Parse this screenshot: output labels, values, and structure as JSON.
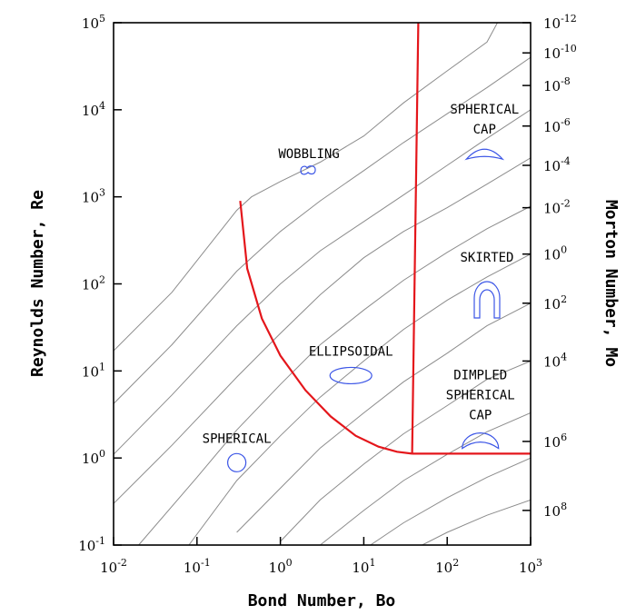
{
  "chart_data": {
    "type": "line",
    "xlabel": "Bond Number, Bo",
    "ylabel": "Reynolds Number, Re",
    "y2label": "Morton Number, Mo",
    "x_scale": "log",
    "y_scale": "log",
    "xlim": [
      0.01,
      1000
    ],
    "ylim": [
      0.1,
      100000
    ],
    "x_ticks": [
      {
        "base": "10",
        "exp": "-2",
        "value": 0.01
      },
      {
        "base": "10",
        "exp": "-1",
        "value": 0.1
      },
      {
        "base": "10",
        "exp": "0",
        "value": 1
      },
      {
        "base": "10",
        "exp": "1",
        "value": 10
      },
      {
        "base": "10",
        "exp": "2",
        "value": 100
      },
      {
        "base": "10",
        "exp": "3",
        "value": 1000
      }
    ],
    "y_ticks": [
      {
        "base": "10",
        "exp": "-1",
        "value": 0.1
      },
      {
        "base": "10",
        "exp": "0",
        "value": 1
      },
      {
        "base": "10",
        "exp": "1",
        "value": 10
      },
      {
        "base": "10",
        "exp": "2",
        "value": 100
      },
      {
        "base": "10",
        "exp": "3",
        "value": 1000
      },
      {
        "base": "10",
        "exp": "4",
        "value": 10000
      },
      {
        "base": "10",
        "exp": "5",
        "value": 100000
      }
    ],
    "mo_labels": [
      {
        "base": "10",
        "exp": "-12",
        "re": 100000
      },
      {
        "base": "10",
        "exp": "-10",
        "re": 45000
      },
      {
        "base": "10",
        "exp": "-8",
        "re": 19000
      },
      {
        "base": "10",
        "exp": "-6",
        "re": 6500
      },
      {
        "base": "10",
        "exp": "-4",
        "re": 2300
      },
      {
        "base": "10",
        "exp": "-2",
        "re": 750
      },
      {
        "base": "10",
        "exp": "0",
        "re": 220
      },
      {
        "base": "10",
        "exp": "2",
        "re": 60
      },
      {
        "base": "10",
        "exp": "4",
        "re": 13
      },
      {
        "base": "10",
        "exp": "6",
        "re": 1.55
      },
      {
        "base": "10",
        "exp": "8",
        "re": 0.25
      }
    ],
    "morton_curves": [
      [
        [
          0.01,
          17
        ],
        [
          0.05,
          80
        ],
        [
          0.3,
          700
        ],
        [
          0.45,
          1000
        ],
        [
          1,
          1500
        ],
        [
          3,
          2500
        ],
        [
          10,
          5000
        ],
        [
          30,
          12000
        ],
        [
          100,
          28000
        ],
        [
          300,
          60000
        ],
        [
          400,
          100000
        ]
      ],
      [
        [
          0.01,
          4.2
        ],
        [
          0.05,
          20
        ],
        [
          0.3,
          140
        ],
        [
          1,
          400
        ],
        [
          3,
          900
        ],
        [
          10,
          2000
        ],
        [
          30,
          4200
        ],
        [
          100,
          9000
        ],
        [
          300,
          18000
        ],
        [
          1000,
          40000
        ]
      ],
      [
        [
          0.01,
          1.1
        ],
        [
          0.05,
          5.3
        ],
        [
          0.3,
          33
        ],
        [
          1,
          100
        ],
        [
          3,
          240
        ],
        [
          10,
          520
        ],
        [
          30,
          1050
        ],
        [
          100,
          2300
        ],
        [
          300,
          4700
        ],
        [
          1000,
          10000
        ]
      ],
      [
        [
          0.01,
          0.3
        ],
        [
          0.05,
          1.4
        ],
        [
          0.3,
          8.5
        ],
        [
          1,
          27
        ],
        [
          3,
          75
        ],
        [
          10,
          200
        ],
        [
          30,
          400
        ],
        [
          100,
          750
        ],
        [
          300,
          1400
        ],
        [
          1000,
          2800
        ]
      ],
      [
        [
          0.02,
          0.1
        ],
        [
          0.1,
          0.6
        ],
        [
          0.3,
          2.1
        ],
        [
          1,
          7
        ],
        [
          3,
          20
        ],
        [
          10,
          50
        ],
        [
          30,
          110
        ],
        [
          100,
          230
        ],
        [
          300,
          430
        ],
        [
          1000,
          780
        ]
      ],
      [
        [
          0.08,
          0.1
        ],
        [
          0.3,
          0.55
        ],
        [
          1,
          1.8
        ],
        [
          3,
          5
        ],
        [
          10,
          13
        ],
        [
          30,
          30
        ],
        [
          100,
          65
        ],
        [
          300,
          120
        ],
        [
          1000,
          220
        ]
      ],
      [
        [
          0.3,
          0.14
        ],
        [
          1,
          0.45
        ],
        [
          3,
          1.3
        ],
        [
          10,
          3.3
        ],
        [
          30,
          7.5
        ],
        [
          100,
          16
        ],
        [
          300,
          33
        ],
        [
          1000,
          60
        ]
      ],
      [
        [
          1,
          0.11
        ],
        [
          3,
          0.33
        ],
        [
          10,
          0.85
        ],
        [
          30,
          1.9
        ],
        [
          100,
          4
        ],
        [
          300,
          8
        ],
        [
          1000,
          13
        ]
      ],
      [
        [
          3,
          0.1
        ],
        [
          10,
          0.25
        ],
        [
          30,
          0.55
        ],
        [
          100,
          1.1
        ],
        [
          300,
          2
        ],
        [
          1000,
          3.3
        ]
      ],
      [
        [
          12,
          0.1
        ],
        [
          30,
          0.18
        ],
        [
          100,
          0.35
        ],
        [
          300,
          0.6
        ],
        [
          1000,
          1
        ]
      ],
      [
        [
          50,
          0.1
        ],
        [
          100,
          0.14
        ],
        [
          300,
          0.22
        ],
        [
          1000,
          0.33
        ]
      ]
    ],
    "boundaries": [
      [
        [
          0.33,
          900
        ],
        [
          0.4,
          150
        ],
        [
          0.6,
          40
        ],
        [
          1,
          15
        ],
        [
          2,
          6
        ],
        [
          4,
          3
        ],
        [
          8,
          1.8
        ],
        [
          15,
          1.35
        ],
        [
          25,
          1.18
        ],
        [
          38,
          1.12
        ]
      ],
      [
        [
          38,
          1.12
        ],
        [
          45,
          100000
        ]
      ],
      [
        [
          38,
          1.12
        ],
        [
          1000,
          1.12
        ]
      ]
    ],
    "regimes": [
      {
        "lines": [
          "SPHERICAL"
        ],
        "bo": 0.3,
        "re": 1.5,
        "shape": "sphere"
      },
      {
        "lines": [
          "ELLIPSOIDAL"
        ],
        "bo": 7,
        "re": 15,
        "shape": "ellipsoid"
      },
      {
        "lines": [
          "WOBBLING"
        ],
        "bo": 2.2,
        "re": 2800,
        "shape": "wobble"
      },
      {
        "lines": [
          "SPHERICAL",
          "CAP"
        ],
        "bo": 280,
        "re": 9000,
        "shape": "cap"
      },
      {
        "lines": [
          "SKIRTED"
        ],
        "bo": 300,
        "re": 180,
        "shape": "skirted"
      },
      {
        "lines": [
          "DIMPLED",
          "SPHERICAL",
          "CAP"
        ],
        "bo": 250,
        "re": 8,
        "shape": "dimpled"
      }
    ],
    "colors": {
      "curves": "#8c8c8c",
      "boundary": "#e4161b",
      "shapes": "#3b55e6",
      "axes": "#000000"
    },
    "grid": false,
    "legend": "none"
  }
}
